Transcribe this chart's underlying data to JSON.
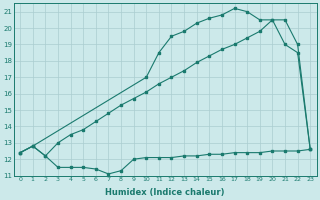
{
  "xlabel": "Humidex (Indice chaleur)",
  "xlim": [
    -0.5,
    23.5
  ],
  "ylim": [
    11,
    21.5
  ],
  "yticks": [
    11,
    12,
    13,
    14,
    15,
    16,
    17,
    18,
    19,
    20,
    21
  ],
  "xticks": [
    0,
    1,
    2,
    3,
    4,
    5,
    6,
    7,
    8,
    9,
    10,
    11,
    12,
    13,
    14,
    15,
    16,
    17,
    18,
    19,
    20,
    21,
    22,
    23
  ],
  "bg_color": "#cce9ea",
  "line_color": "#1a7a6e",
  "grid_color": "#aacdd0",
  "line1_x": [
    0,
    1,
    2,
    3,
    4,
    5,
    6,
    7,
    8,
    9,
    10,
    11,
    12,
    13,
    14,
    15,
    16,
    17,
    18,
    19,
    20,
    21,
    22,
    23
  ],
  "line1_y": [
    12.4,
    12.8,
    12.2,
    11.5,
    11.5,
    11.5,
    11.4,
    11.1,
    11.3,
    12.0,
    12.1,
    12.1,
    12.1,
    12.2,
    12.2,
    12.3,
    12.3,
    12.4,
    12.4,
    12.4,
    12.5,
    12.5,
    12.5,
    12.6
  ],
  "line2_x": [
    0,
    1,
    10,
    11,
    12,
    13,
    14,
    15,
    16,
    17,
    18,
    19,
    20,
    21,
    22,
    23
  ],
  "line2_y": [
    12.4,
    12.8,
    17.0,
    18.5,
    19.5,
    19.8,
    20.3,
    20.6,
    20.8,
    21.2,
    21.0,
    20.5,
    20.5,
    19.0,
    18.5,
    12.6
  ],
  "line3_x": [
    0,
    1,
    2,
    3,
    4,
    5,
    6,
    7,
    8,
    9,
    10,
    11,
    12,
    13,
    14,
    15,
    16,
    17,
    18,
    19,
    20,
    21,
    22,
    23
  ],
  "line3_y": [
    12.4,
    12.8,
    12.2,
    13.0,
    13.5,
    13.8,
    14.3,
    14.8,
    15.3,
    15.7,
    16.1,
    16.6,
    17.0,
    17.4,
    17.9,
    18.3,
    18.7,
    19.0,
    19.4,
    19.8,
    20.5,
    20.5,
    19.0,
    12.6
  ]
}
